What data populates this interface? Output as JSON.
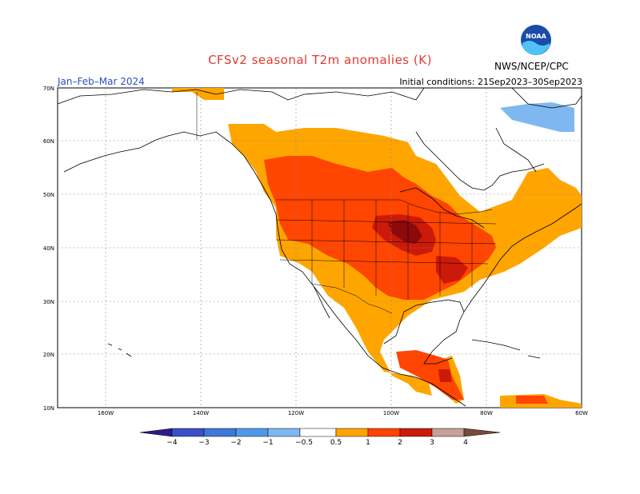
{
  "title": "CFSv2 seasonal T2m anomalies (K)",
  "season": "Jan–Feb–Mar 2024",
  "initial_conditions": "Initial conditions: 21Sep2023–30Sep2023",
  "agency": "NWS/NCEP/CPC",
  "logo_text": "NOAA",
  "lat_labels": [
    "70N",
    "60N",
    "50N",
    "40N",
    "30N",
    "20N",
    "10N"
  ],
  "lon_labels": [
    "160W",
    "140W",
    "120W",
    "100W",
    "80W",
    "60W"
  ],
  "colorbar": {
    "labels": [
      "−4",
      "−3",
      "−2",
      "−1",
      "−0.5",
      "0.5",
      "1",
      "2",
      "3",
      "4"
    ],
    "colors": [
      "#2d1b8e",
      "#3a4fc9",
      "#3f78d9",
      "#4f9ae8",
      "#7fb8f0",
      "#ffffff",
      "#ffa500",
      "#ff4500",
      "#cc1a0a",
      "#8b0a0a",
      "#c8a095",
      "#7a4a3a"
    ]
  },
  "colors": {
    "anom_0_5_1": "#ffa500",
    "anom_1_2": "#ff4500",
    "anom_2_3": "#cc1a0a",
    "anom_3_4": "#8b0a0a",
    "anom_neg_0_5_1": "#7fb8f0",
    "coast": "#000000",
    "grid": "#888888"
  }
}
